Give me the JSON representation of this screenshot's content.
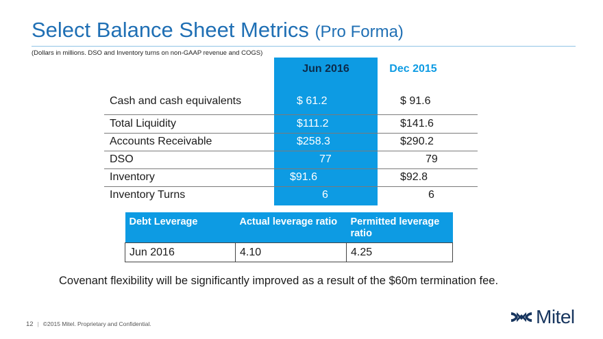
{
  "header": {
    "title_main": "Select Balance Sheet Metrics",
    "title_sub": "(Pro Forma)",
    "subtitle": "(Dollars in millions. DSO and Inventory turns on non-GAAP revenue and COGS)"
  },
  "metrics": {
    "col1": "Jun 2016",
    "col2": "Dec 2015",
    "rows": [
      {
        "label": "Cash and cash equivalents",
        "v1": "$  61.2",
        "v2": "$  91.6"
      },
      {
        "label": "Total Liquidity",
        "v1": "$111.2",
        "v2": "$141.6"
      },
      {
        "label": "Accounts Receivable",
        "v1": "$258.3",
        "v2": "$290.2"
      },
      {
        "label": "DSO",
        "v1": "77",
        "v2": "79"
      },
      {
        "label": "Inventory",
        "v1": "$91.6",
        "v2": "$92.8"
      },
      {
        "label": "Inventory Turns",
        "v1": "6",
        "v2": "6"
      }
    ]
  },
  "debt": {
    "headers": [
      "Debt Leverage",
      "Actual leverage ratio",
      "Permitted leverage ratio"
    ],
    "row": [
      "Jun 2016",
      "4.10",
      "4.25"
    ]
  },
  "note": "Covenant flexibility will be significantly improved as a result of the $60m termination fee.",
  "footer": {
    "page": "12",
    "sep": "|",
    "text": "©2015 Mitel. Proprietary and Confidential."
  },
  "logo": {
    "text": "Mitel",
    "color": "#17355e"
  },
  "colors": {
    "accent": "#0d9be3",
    "title": "#1f6fb4"
  }
}
